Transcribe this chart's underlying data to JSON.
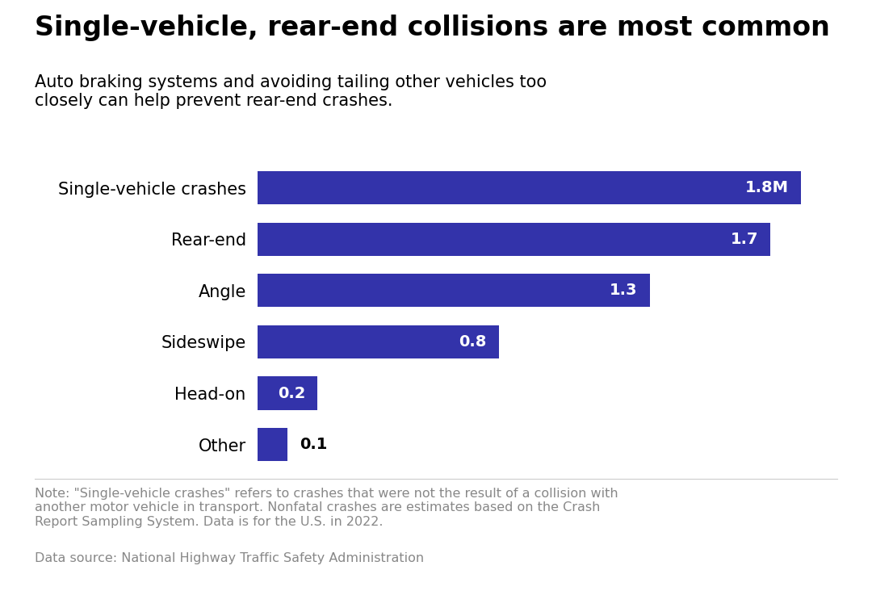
{
  "title": "Single-vehicle, rear-end collisions are most common",
  "subtitle": "Auto braking systems and avoiding tailing other vehicles too\nclosely can help prevent rear-end crashes.",
  "categories": [
    "Single-vehicle crashes",
    "Rear-end",
    "Angle",
    "Sideswipe",
    "Head-on",
    "Other"
  ],
  "values": [
    1.8,
    1.7,
    1.3,
    0.8,
    0.2,
    0.1
  ],
  "labels": [
    "1.8M",
    "1.7",
    "1.3",
    "0.8",
    "0.2",
    "0.1"
  ],
  "bar_color": "#3333aa",
  "label_inside": [
    true,
    true,
    true,
    true,
    true,
    false
  ],
  "note": "Note: \"Single-vehicle crashes\" refers to crashes that were not the result of a collision with\nanother motor vehicle in transport. Nonfatal crashes are estimates based on the Crash\nReport Sampling System. Data is for the U.S. in 2022.",
  "source": "Data source: National Highway Traffic Safety Administration",
  "xlim": [
    0,
    1.95
  ],
  "background_color": "#ffffff",
  "title_fontsize": 24,
  "subtitle_fontsize": 15,
  "label_fontsize": 14,
  "category_fontsize": 15,
  "note_fontsize": 11.5,
  "source_fontsize": 11.5,
  "note_color": "#888888",
  "source_color": "#888888"
}
